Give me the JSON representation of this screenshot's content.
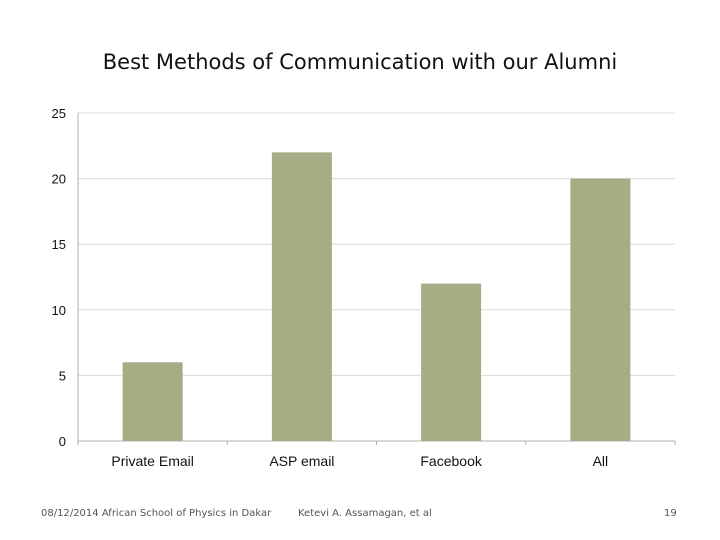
{
  "slide": {
    "title": "Best Methods of Communication with our Alumni",
    "footer_date_event": "08/12/2014 African School of Physics in Dakar",
    "footer_author": "Ketevi A. Assamagan, et al",
    "page_number": "19"
  },
  "chart_data": {
    "type": "bar",
    "categories": [
      "Private Email",
      "ASP email",
      "Facebook",
      "All"
    ],
    "values": [
      6,
      22,
      12,
      20
    ],
    "ylim": [
      0,
      25
    ],
    "yticks": [
      "0",
      "5",
      "10",
      "15",
      "20",
      "25"
    ],
    "grid": true,
    "colors": {
      "bar": "#a5ad84",
      "grid": "#d9d9d9",
      "axis": "#b0b0b0"
    }
  }
}
